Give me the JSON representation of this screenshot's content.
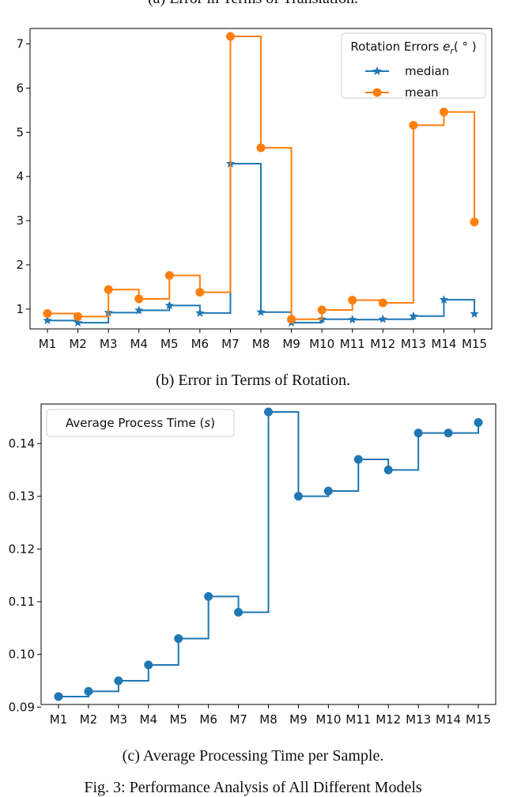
{
  "captions": {
    "a": "(a) Error in Terms of Translation.",
    "b": "(b) Error in Terms of Rotation.",
    "c": "(c) Average Processing Time per Sample.",
    "figure": "Fig. 3: Performance Analysis of All Different Models"
  },
  "colors": {
    "median": "#1f77b4",
    "mean": "#ff7f0e",
    "time": "#1f77b4"
  },
  "chart_data": [
    {
      "type": "line",
      "step": "post",
      "title": "(b) Error in Terms of Rotation.",
      "categories": [
        "M1",
        "M2",
        "M3",
        "M4",
        "M5",
        "M6",
        "M7",
        "M8",
        "M9",
        "M10",
        "M11",
        "M12",
        "M13",
        "M14",
        "M15"
      ],
      "legend_title": "Rotation Errors e_r(°)",
      "legend_title_parts": {
        "main": "Rotation Errors ",
        "var": "e",
        "sub": "r",
        "unit": "( ° )"
      },
      "legend_position": "top-right",
      "series": [
        {
          "name": "median",
          "marker": "star",
          "values": [
            0.74,
            0.69,
            0.92,
            0.97,
            1.08,
            0.91,
            4.29,
            0.93,
            0.69,
            0.77,
            0.76,
            0.77,
            0.84,
            1.21,
            0.89
          ]
        },
        {
          "name": "mean",
          "marker": "circle",
          "values": [
            0.9,
            0.83,
            1.44,
            1.23,
            1.76,
            1.38,
            7.17,
            4.65,
            0.77,
            0.98,
            1.2,
            1.14,
            5.16,
            5.46,
            2.97
          ]
        }
      ],
      "ylim": [
        0.55,
        7.35
      ],
      "yticks": [
        1,
        2,
        3,
        4,
        5,
        6,
        7
      ]
    },
    {
      "type": "line",
      "step": "post",
      "title": "(c) Average Processing Time per Sample.",
      "categories": [
        "M1",
        "M2",
        "M3",
        "M4",
        "M5",
        "M6",
        "M7",
        "M8",
        "M9",
        "M10",
        "M11",
        "M12",
        "M13",
        "M14",
        "M15"
      ],
      "legend_title": "Average Process Time (s)",
      "legend_title_parts": {
        "main": "Average Process Time (",
        "var": "s",
        "unit": ")"
      },
      "legend_position": "top-left",
      "series": [
        {
          "name": "Average Process Time (s)",
          "marker": "circle",
          "values": [
            0.092,
            0.093,
            0.095,
            0.098,
            0.103,
            0.111,
            0.108,
            0.146,
            0.13,
            0.131,
            0.137,
            0.135,
            0.142,
            0.142,
            0.144
          ]
        }
      ],
      "ylim": [
        0.0905,
        0.1475
      ],
      "yticks": [
        0.09,
        0.1,
        0.11,
        0.12,
        0.13,
        0.14
      ],
      "ytick_labels": [
        "0.09",
        "0.10",
        "0.11",
        "0.12",
        "0.13",
        "0.14"
      ]
    }
  ]
}
